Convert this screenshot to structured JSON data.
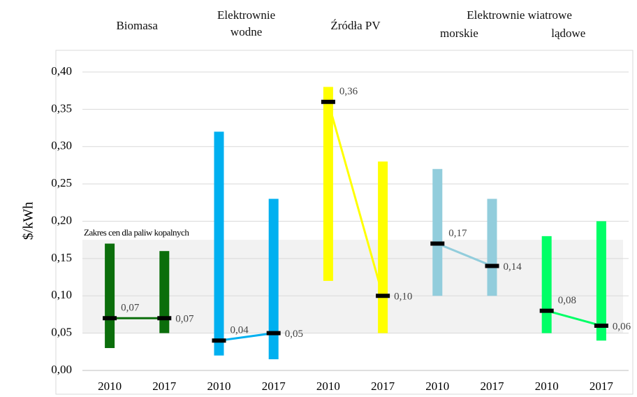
{
  "chart_data": {
    "type": "range_median",
    "y_label": "$/kWh",
    "categories": [
      "2010",
      "2017"
    ],
    "ylim": [
      0,
      0.4
    ],
    "yticks": [
      {
        "value": 0,
        "label": "0,00"
      },
      {
        "value": 0.05,
        "label": "0,05"
      },
      {
        "value": 0.1,
        "label": "0,10"
      },
      {
        "value": 0.15,
        "label": "0,15"
      },
      {
        "value": 0.2,
        "label": "0,20"
      },
      {
        "value": 0.25,
        "label": "0,25"
      },
      {
        "value": 0.3,
        "label": "0,30"
      },
      {
        "value": 0.35,
        "label": "0,35"
      },
      {
        "value": 0.4,
        "label": "0,40"
      }
    ],
    "grid": true,
    "fossil_band": {
      "label": "Zakres cen dla paliw kopalnych",
      "range": [
        0.05,
        0.175
      ],
      "color": "#f2f2f2"
    },
    "group_title": "Elektrownie wiatrowe",
    "series": [
      {
        "name": "Biomasa",
        "color": "#0b6e0b",
        "low": [
          0.03,
          0.05
        ],
        "high": [
          0.17,
          0.16
        ],
        "values": [
          0.07,
          0.07
        ],
        "value_labels": [
          "0,07",
          "0,07"
        ]
      },
      {
        "name": "Elektrownie wodne",
        "color": "#00b0f0",
        "low": [
          0.02,
          0.015
        ],
        "high": [
          0.32,
          0.23
        ],
        "values": [
          0.04,
          0.05
        ],
        "value_labels": [
          "0,04",
          "0,05"
        ]
      },
      {
        "name": "Źródła PV",
        "color": "#ffff00",
        "low": [
          0.12,
          0.05
        ],
        "high": [
          0.38,
          0.28
        ],
        "values": [
          0.36,
          0.1
        ],
        "value_labels": [
          "0,36",
          "0,10"
        ]
      },
      {
        "name": "morskie",
        "group": true,
        "color": "#92cddc",
        "low": [
          0.1,
          0.1
        ],
        "high": [
          0.27,
          0.23
        ],
        "values": [
          0.17,
          0.14
        ],
        "value_labels": [
          "0,17",
          "0,14"
        ]
      },
      {
        "name": "lądowe",
        "group": true,
        "color": "#00ff66",
        "low": [
          0.05,
          0.04
        ],
        "high": [
          0.18,
          0.2
        ],
        "values": [
          0.08,
          0.06
        ],
        "value_labels": [
          "0,08",
          "0,06"
        ]
      }
    ]
  }
}
